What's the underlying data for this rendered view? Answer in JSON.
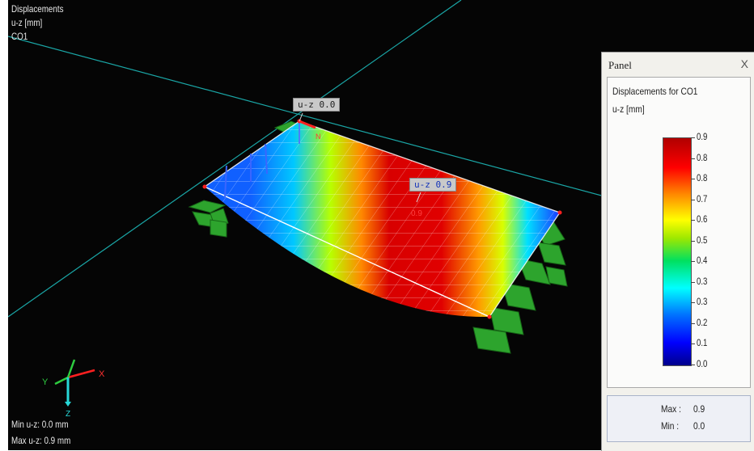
{
  "viewport": {
    "title": "Displacements",
    "quantity": "u-z [mm]",
    "case": "CO1",
    "min_line": "Min u-z: 0.0 mm",
    "max_line": "Max u-z: 0.9 mm"
  },
  "labels": {
    "uz_left": "u-z   0.0",
    "uz_mid": "u-z   0.9",
    "max_marker": "0.9"
  },
  "axes": {
    "x": "X",
    "y": "Y",
    "z": "Z"
  },
  "panel": {
    "title": "Panel",
    "close": "X",
    "heading": "Displacements for CO1",
    "unit": "u-z [mm]",
    "legend_values": [
      "0.9",
      "0.8",
      "0.8",
      "0.7",
      "0.6",
      "0.5",
      "0.4",
      "0.3",
      "0.3",
      "0.2",
      "0.1",
      "0.0"
    ],
    "max_label": "Max :",
    "max_value": "0.9",
    "min_label": "Min :",
    "min_value": "0.0"
  },
  "colors": {
    "background": "#050505",
    "gridline": "#1aa6a6",
    "mesh": "#ffffff",
    "support": "#2fa52f"
  }
}
